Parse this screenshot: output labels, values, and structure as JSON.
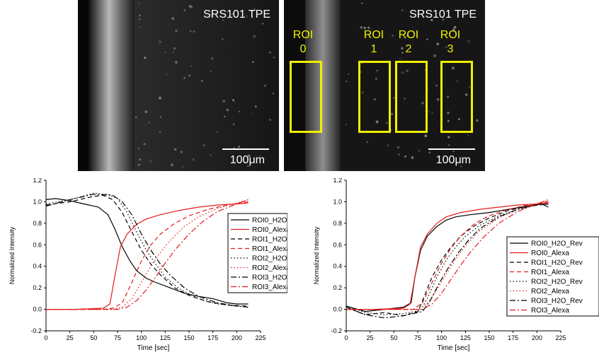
{
  "micrographs": [
    {
      "title": "SRS101 TPE",
      "scale_label": "100μm",
      "rois": []
    },
    {
      "title": "SRS101 TPE",
      "scale_label": "100μm",
      "rois": [
        {
          "line1": "ROI",
          "line2": "0"
        },
        {
          "line1": "ROI",
          "line2": "1"
        },
        {
          "line1": "ROI",
          "line2": "2"
        },
        {
          "line1": "ROI",
          "line2": "3"
        }
      ]
    }
  ],
  "colors": {
    "h2o": "#000000",
    "alexa": "#e41a1c",
    "roi_box": "#f0f000"
  },
  "chart_data": [
    {
      "type": "line",
      "xlabel": "Time [sec]",
      "ylabel": "Normalized Intensity",
      "xlim": [
        0,
        225
      ],
      "ylim": [
        -0.2,
        1.2
      ],
      "xticks": [
        0,
        25,
        50,
        75,
        100,
        125,
        150,
        175,
        200,
        225
      ],
      "yticks": [
        -0.2,
        0.0,
        0.2,
        0.4,
        0.6,
        0.8,
        1.0,
        1.2
      ],
      "legend": "right",
      "series": [
        {
          "name": "ROI0_H2O",
          "color": "#000000",
          "dash": "solid",
          "x": [
            0,
            10,
            25,
            40,
            55,
            65,
            72,
            80,
            88,
            95,
            105,
            115,
            130,
            145,
            160,
            175,
            190,
            200,
            212
          ],
          "y": [
            1.02,
            1.03,
            1.01,
            0.98,
            0.95,
            0.88,
            0.75,
            0.58,
            0.45,
            0.36,
            0.29,
            0.25,
            0.2,
            0.15,
            0.12,
            0.1,
            0.06,
            0.05,
            0.05
          ]
        },
        {
          "name": "ROI0_Alexa",
          "color": "#e41a1c",
          "dash": "solid",
          "x": [
            0,
            30,
            60,
            67,
            72,
            78,
            85,
            95,
            105,
            120,
            140,
            160,
            180,
            200,
            212
          ],
          "y": [
            0.0,
            0.0,
            0.01,
            0.05,
            0.3,
            0.58,
            0.7,
            0.79,
            0.84,
            0.88,
            0.92,
            0.95,
            0.97,
            0.98,
            0.99
          ]
        },
        {
          "name": "ROI1_H2O",
          "color": "#000000",
          "dash": "6,4",
          "x": [
            0,
            25,
            50,
            60,
            70,
            80,
            90,
            100,
            110,
            120,
            135,
            150,
            170,
            190,
            212
          ],
          "y": [
            0.97,
            1.0,
            1.05,
            1.06,
            1.02,
            0.9,
            0.72,
            0.55,
            0.42,
            0.32,
            0.2,
            0.13,
            0.07,
            0.04,
            0.03
          ]
        },
        {
          "name": "ROI1_Alexa",
          "color": "#e41a1c",
          "dash": "6,4",
          "x": [
            0,
            60,
            70,
            80,
            90,
            100,
            110,
            120,
            135,
            150,
            170,
            190,
            212
          ],
          "y": [
            0.0,
            0.0,
            0.01,
            0.06,
            0.25,
            0.45,
            0.6,
            0.7,
            0.8,
            0.87,
            0.93,
            0.97,
            1.0
          ]
        },
        {
          "name": "ROI2_H2O",
          "color": "#000000",
          "dash": "1.5,3",
          "x": [
            0,
            25,
            50,
            65,
            75,
            85,
            95,
            105,
            115,
            125,
            140,
            160,
            180,
            200,
            212
          ],
          "y": [
            0.98,
            1.02,
            1.08,
            1.07,
            1.03,
            0.9,
            0.72,
            0.55,
            0.42,
            0.3,
            0.19,
            0.1,
            0.05,
            0.03,
            0.02
          ]
        },
        {
          "name": "ROI2_Alexa",
          "color": "#e41a1c",
          "dash": "1.5,3",
          "x": [
            0,
            70,
            80,
            90,
            100,
            110,
            120,
            130,
            145,
            160,
            180,
            200,
            212
          ],
          "y": [
            0.0,
            0.0,
            0.02,
            0.1,
            0.25,
            0.4,
            0.53,
            0.64,
            0.77,
            0.86,
            0.94,
            0.99,
            1.02
          ]
        },
        {
          "name": "ROI3_H2O",
          "color": "#000000",
          "dash": "8,3,2,3",
          "x": [
            0,
            25,
            50,
            70,
            80,
            90,
            100,
            110,
            120,
            130,
            145,
            160,
            180,
            200,
            212
          ],
          "y": [
            0.96,
            1.02,
            1.07,
            1.06,
            1.0,
            0.88,
            0.7,
            0.55,
            0.42,
            0.32,
            0.2,
            0.12,
            0.06,
            0.03,
            0.02
          ]
        },
        {
          "name": "ROI3_Alexa",
          "color": "#e41a1c",
          "dash": "8,3,2,3",
          "x": [
            0,
            75,
            85,
            95,
            105,
            115,
            125,
            135,
            150,
            165,
            180,
            200,
            212
          ],
          "y": [
            0.0,
            0.0,
            0.02,
            0.08,
            0.18,
            0.3,
            0.43,
            0.55,
            0.7,
            0.82,
            0.91,
            0.98,
            1.02
          ]
        }
      ]
    },
    {
      "type": "line",
      "xlabel": "Time [sec]",
      "ylabel": "Normalized Intensity",
      "xlim": [
        0,
        225
      ],
      "ylim": [
        -0.2,
        1.2
      ],
      "xticks": [
        0,
        25,
        50,
        75,
        100,
        125,
        150,
        175,
        200,
        225
      ],
      "yticks": [
        -0.2,
        0.0,
        0.2,
        0.4,
        0.6,
        0.8,
        1.0,
        1.2
      ],
      "legend": "right",
      "series": [
        {
          "name": "ROI0_H2O_Rev",
          "color": "#000000",
          "dash": "solid",
          "x": [
            0,
            20,
            40,
            60,
            68,
            72,
            78,
            85,
            95,
            105,
            115,
            130,
            150,
            170,
            190,
            205,
            212
          ],
          "y": [
            0.03,
            -0.02,
            0.0,
            0.02,
            0.06,
            0.3,
            0.55,
            0.68,
            0.77,
            0.83,
            0.86,
            0.88,
            0.9,
            0.93,
            0.96,
            0.98,
            0.95
          ]
        },
        {
          "name": "ROI0_Alexa",
          "color": "#e41a1c",
          "dash": "solid",
          "x": [
            0,
            30,
            60,
            67,
            72,
            78,
            85,
            95,
            105,
            120,
            140,
            160,
            180,
            200,
            212
          ],
          "y": [
            0.0,
            0.0,
            0.01,
            0.05,
            0.3,
            0.58,
            0.7,
            0.8,
            0.86,
            0.9,
            0.93,
            0.95,
            0.97,
            0.98,
            0.99
          ]
        },
        {
          "name": "ROI1_H2O_Rev",
          "color": "#000000",
          "dash": "6,4",
          "x": [
            0,
            20,
            40,
            60,
            75,
            80,
            90,
            100,
            110,
            120,
            135,
            150,
            170,
            190,
            212
          ],
          "y": [
            0.02,
            -0.05,
            -0.03,
            -0.06,
            -0.02,
            0.08,
            0.3,
            0.46,
            0.58,
            0.68,
            0.78,
            0.85,
            0.92,
            0.96,
            0.98
          ]
        },
        {
          "name": "ROI1_Alexa",
          "color": "#e41a1c",
          "dash": "6,4",
          "x": [
            0,
            70,
            80,
            90,
            100,
            110,
            120,
            135,
            150,
            170,
            190,
            212
          ],
          "y": [
            0.0,
            0.0,
            0.06,
            0.25,
            0.43,
            0.57,
            0.68,
            0.8,
            0.87,
            0.93,
            0.97,
            1.0
          ]
        },
        {
          "name": "ROI2_H2O_Rev",
          "color": "#000000",
          "dash": "1.5,3",
          "x": [
            0,
            20,
            40,
            60,
            78,
            85,
            95,
            105,
            115,
            125,
            140,
            160,
            180,
            200,
            212
          ],
          "y": [
            0.03,
            -0.03,
            -0.05,
            -0.04,
            -0.01,
            0.1,
            0.3,
            0.46,
            0.58,
            0.68,
            0.78,
            0.87,
            0.93,
            0.97,
            0.98
          ]
        },
        {
          "name": "ROI2_Alexa",
          "color": "#e41a1c",
          "dash": "1.5,3",
          "x": [
            0,
            75,
            85,
            95,
            105,
            115,
            125,
            140,
            160,
            180,
            200,
            212
          ],
          "y": [
            0.0,
            0.0,
            0.05,
            0.18,
            0.33,
            0.47,
            0.59,
            0.73,
            0.85,
            0.93,
            0.98,
            1.01
          ]
        },
        {
          "name": "ROI3_H2O_Rev",
          "color": "#000000",
          "dash": "8,3,2,3",
          "x": [
            0,
            20,
            40,
            60,
            80,
            88,
            98,
            108,
            118,
            128,
            140,
            160,
            180,
            200,
            212
          ],
          "y": [
            0.02,
            -0.05,
            -0.08,
            -0.06,
            -0.02,
            0.08,
            0.25,
            0.4,
            0.53,
            0.64,
            0.75,
            0.86,
            0.93,
            0.97,
            0.98
          ]
        },
        {
          "name": "ROI3_Alexa",
          "color": "#e41a1c",
          "dash": "8,3,2,3",
          "x": [
            0,
            80,
            90,
            100,
            110,
            120,
            130,
            145,
            160,
            180,
            200,
            212
          ],
          "y": [
            0.0,
            0.0,
            0.05,
            0.15,
            0.28,
            0.41,
            0.53,
            0.68,
            0.8,
            0.91,
            0.98,
            1.02
          ]
        }
      ]
    }
  ]
}
